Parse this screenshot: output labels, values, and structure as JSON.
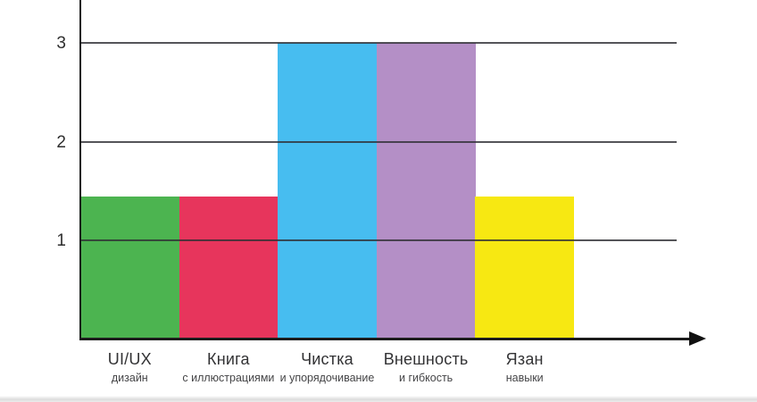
{
  "chart_data": {
    "type": "bar",
    "title": "",
    "xlabel": "",
    "ylabel": "",
    "categories": [
      "UI/UX",
      "Книга",
      "Чистка",
      "Внешность",
      "Язан"
    ],
    "sublabels": [
      "дизайн",
      "с иллюстрациями",
      "и упорядочивание",
      "и гибкость",
      "навыки"
    ],
    "values": [
      1.45,
      1.45,
      3,
      3,
      1.45
    ],
    "bar_colors": [
      "#4cb450",
      "#e7355c",
      "#47bdf0",
      "#b48fc6",
      "#f7e812"
    ],
    "yticks": [
      "1",
      "2",
      "3"
    ],
    "ytick_values": [
      1,
      2,
      3
    ],
    "ylim": [
      0,
      3.45
    ],
    "grid": "on",
    "legend": "none",
    "gridline_color": "rgba(48,48,52,0.82)",
    "axis_color": "#1c1c1c",
    "label_color": "#333335",
    "sublabel_color": "#454547"
  }
}
